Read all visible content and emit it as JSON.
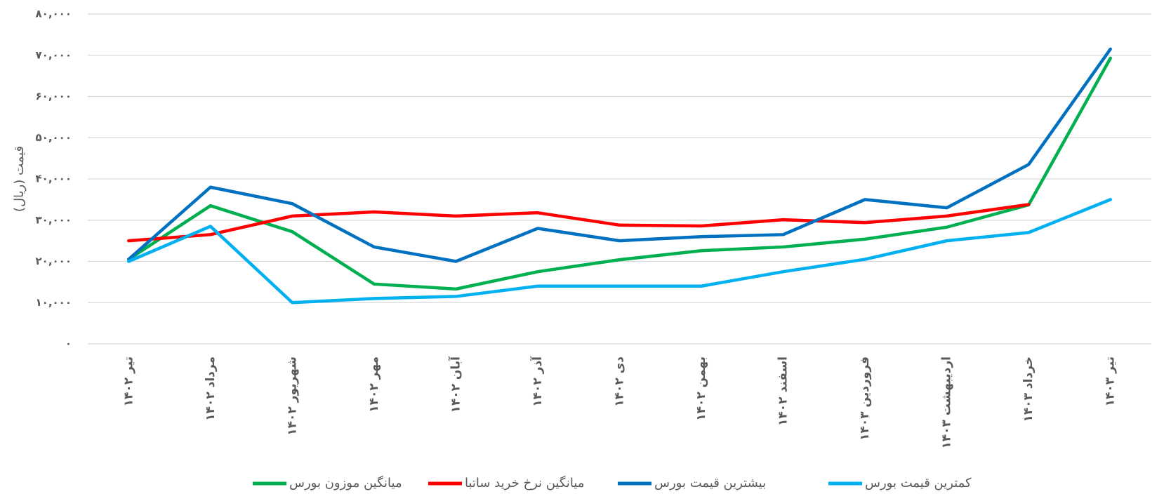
{
  "chart_data": {
    "type": "line",
    "y_label": "قیمت (ریال)",
    "categories": [
      "تیر ۱۴۰۲",
      "مرداد ۱۴۰۲",
      "شهریور ۱۴۰۲",
      "مهر ۱۴۰۲",
      "آبان ۱۴۰۲",
      "آذر ۱۴۰۲",
      "دی ۱۴۰۲",
      "بهمن ۱۴۰۲",
      "اسفند ۱۴۰۲",
      "فروردین ۱۴۰۳",
      "اردیبهشت ۱۴۰۳",
      "خرداد ۱۴۰۳",
      "تیر ۱۴۰۳"
    ],
    "series": [
      {
        "name": "میانگین موزون بورس",
        "color": "#00b050",
        "values": [
          20500,
          33500,
          27200,
          14500,
          13300,
          17500,
          20400,
          22600,
          23500,
          25400,
          28300,
          33700,
          69300
        ]
      },
      {
        "name": "میانگین نرخ خرید ساتبا",
        "color": "#ff0000",
        "values": [
          25000,
          26500,
          31000,
          32000,
          31000,
          31800,
          28800,
          28600,
          30100,
          29400,
          31000,
          33800,
          null
        ]
      },
      {
        "name": "بیشترین قیمت بورس",
        "color": "#0070c0",
        "values": [
          20500,
          38000,
          34000,
          23500,
          20000,
          28000,
          25000,
          26000,
          26500,
          35000,
          33000,
          43500,
          71500
        ]
      },
      {
        "name": "کمترین قیمت بورس",
        "color": "#00b0f0",
        "values": [
          20000,
          28500,
          10000,
          11000,
          11500,
          14000,
          14000,
          14000,
          17500,
          20500,
          25000,
          27000,
          35000
        ]
      }
    ],
    "ylim": [
      0,
      80000
    ],
    "yticks": [
      {
        "value": 0,
        "label": "۰"
      },
      {
        "value": 10000,
        "label": "۱۰,۰۰۰"
      },
      {
        "value": 20000,
        "label": "۲۰,۰۰۰"
      },
      {
        "value": 30000,
        "label": "۳۰,۰۰۰"
      },
      {
        "value": 40000,
        "label": "۴۰,۰۰۰"
      },
      {
        "value": 50000,
        "label": "۵۰,۰۰۰"
      },
      {
        "value": 60000,
        "label": "۶۰,۰۰۰"
      },
      {
        "value": 70000,
        "label": "۷۰,۰۰۰"
      },
      {
        "value": 80000,
        "label": "۸۰,۰۰۰"
      }
    ],
    "grid": true,
    "legend": "bottom"
  }
}
